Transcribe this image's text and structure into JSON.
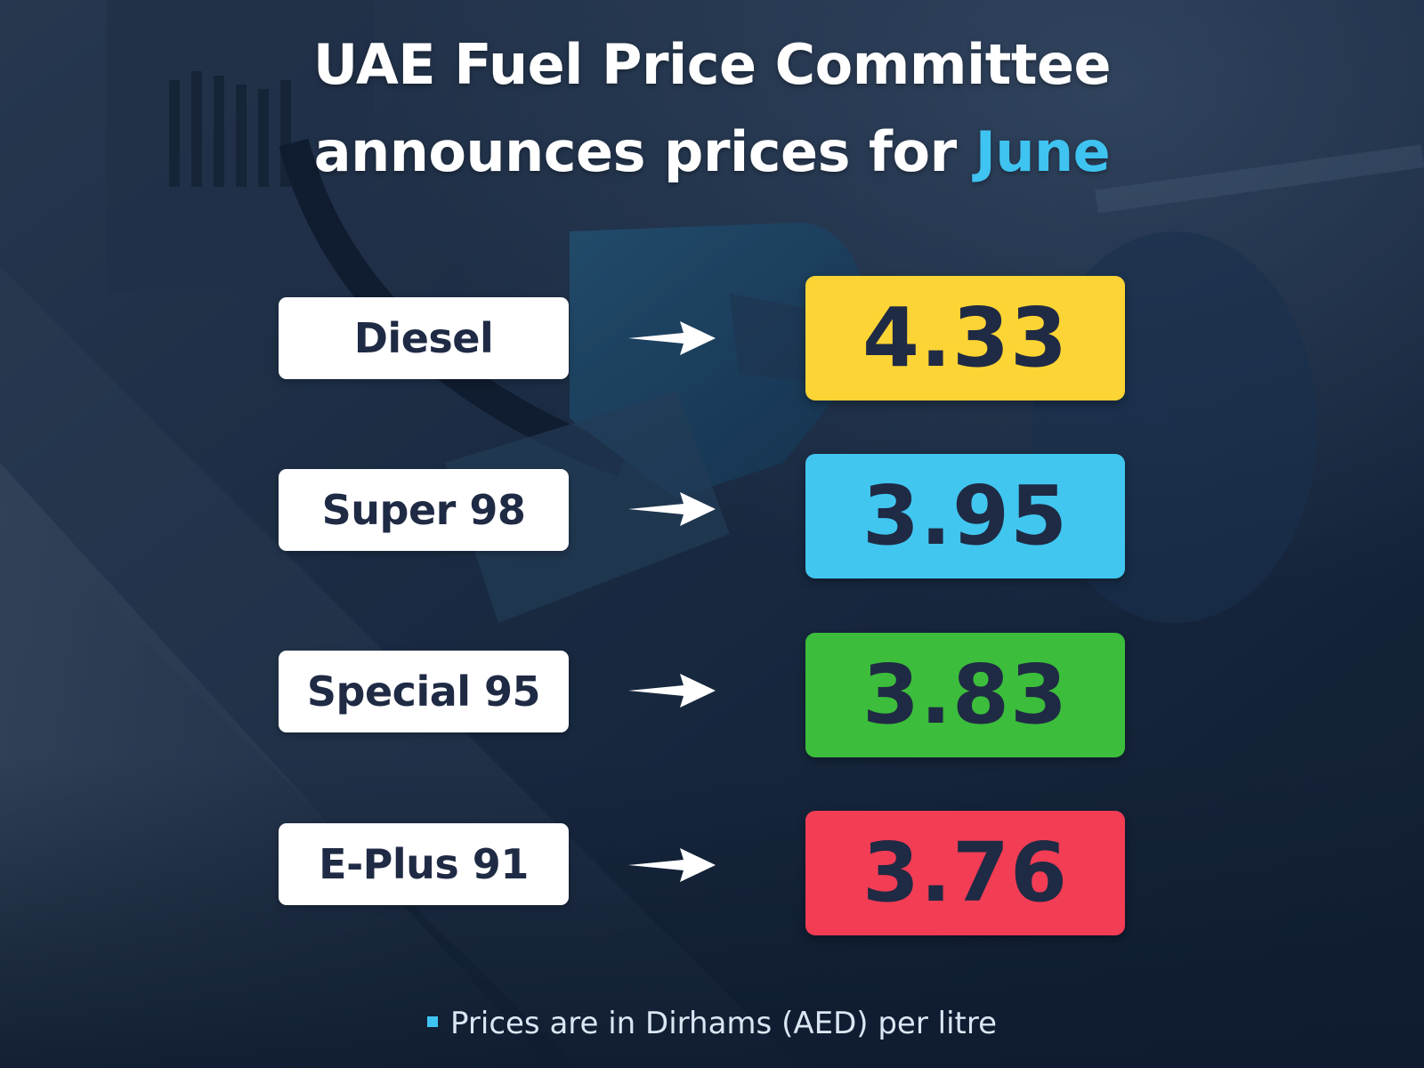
{
  "title": {
    "line1": "UAE Fuel Price Committee",
    "line2_prefix": "announces prices for",
    "month": "June"
  },
  "colors": {
    "month_accent": "#3fc3f1",
    "diesel": "#fdd435",
    "super98": "#41c6f0",
    "special95": "#3cbd3c",
    "eplus91": "#f23d55"
  },
  "prices": [
    {
      "fuel": "Diesel",
      "price": "4.33",
      "color": "#fdd435"
    },
    {
      "fuel": "Super 98",
      "price": "3.95",
      "color": "#41c6f0"
    },
    {
      "fuel": "Special 95",
      "price": "3.83",
      "color": "#3cbd3c"
    },
    {
      "fuel": "E-Plus 91",
      "price": "3.76",
      "color": "#f23d55"
    }
  ],
  "note": "Prices are in Dirhams (AED) per litre"
}
